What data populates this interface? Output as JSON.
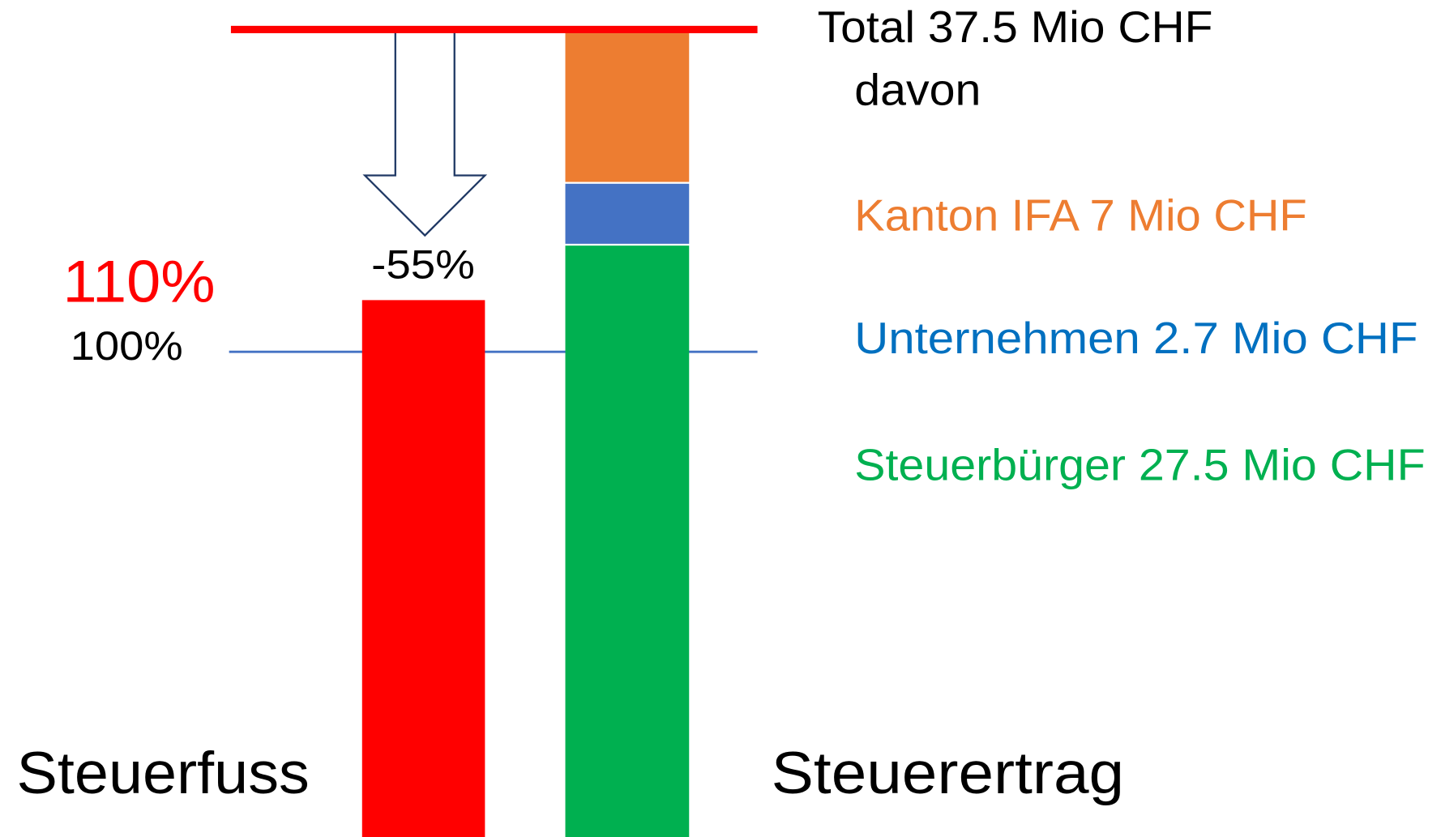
{
  "header": {
    "total": "Total 37.5 Mio CHF",
    "davon": "davon"
  },
  "legend": {
    "kanton": "Kanton IFA 7 Mio CHF",
    "unternehmen": "Unternehmen 2.7 Mio CHF",
    "steuerbuerger": "Steuerbürger 27.5 Mio CHF"
  },
  "labels": {
    "change": "-55%",
    "current": "110%",
    "baseline": "100%",
    "left_column": "Steuerfuss",
    "right_column": "Steuerertrag"
  }
}
